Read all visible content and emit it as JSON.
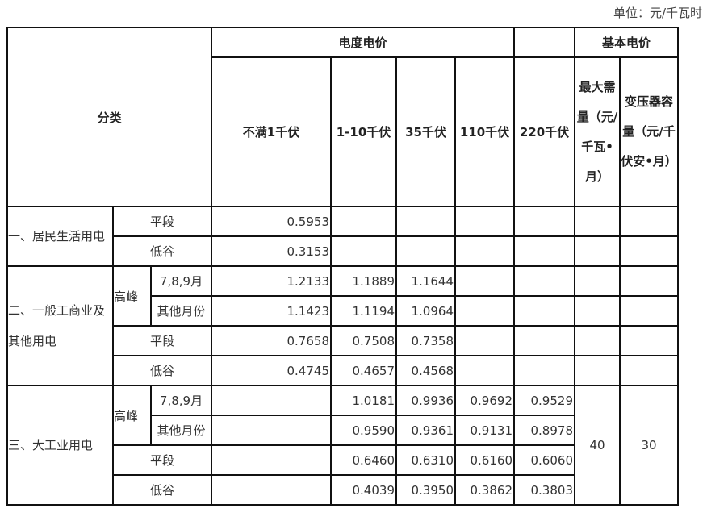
{
  "unit_label": "单位：元/千瓦时",
  "header": {
    "category": "分类",
    "energy_price": "电度电价",
    "basic_price": "基本电价",
    "voltage_levels": [
      "不满1千伏",
      "1-10千伏",
      "35千伏",
      "110千伏",
      "220千伏"
    ],
    "max_demand": "最大需量（元/千瓦•月）",
    "transformer_capacity": "变压器容量（元/千伏安•月）"
  },
  "groups": [
    {
      "name": "一、居民生活用电",
      "rows": [
        {
          "period": "平段",
          "values": [
            "0.5953",
            "",
            "",
            "",
            ""
          ]
        },
        {
          "period": "低谷",
          "values": [
            "0.3153",
            "",
            "",
            "",
            ""
          ]
        }
      ]
    },
    {
      "name": "二、一般工商业及其他用电",
      "peak_label": "高峰",
      "rows": [
        {
          "period": "7,8,9月",
          "peak": true,
          "values": [
            "1.2133",
            "1.1889",
            "1.1644",
            "",
            ""
          ]
        },
        {
          "period": "其他月份",
          "peak": true,
          "values": [
            "1.1423",
            "1.1194",
            "1.0964",
            "",
            ""
          ]
        },
        {
          "period": "平段",
          "values": [
            "0.7658",
            "0.7508",
            "0.7358",
            "",
            ""
          ]
        },
        {
          "period": "低谷",
          "values": [
            "0.4745",
            "0.4657",
            "0.4568",
            "",
            ""
          ]
        }
      ]
    },
    {
      "name": "三、大工业用电",
      "peak_label": "高峰",
      "max_demand": "40",
      "transformer_capacity": "30",
      "rows": [
        {
          "period": "7,8,9月",
          "peak": true,
          "values": [
            "",
            "1.0181",
            "0.9936",
            "0.9692",
            "0.9529"
          ]
        },
        {
          "period": "其他月份",
          "peak": true,
          "values": [
            "",
            "0.9590",
            "0.9361",
            "0.9131",
            "0.8978"
          ]
        },
        {
          "period": "平段",
          "values": [
            "",
            "0.6460",
            "0.6310",
            "0.6160",
            "0.6060"
          ]
        },
        {
          "period": "低谷",
          "values": [
            "",
            "0.4039",
            "0.3950",
            "0.3862",
            "0.3803"
          ]
        }
      ]
    }
  ]
}
